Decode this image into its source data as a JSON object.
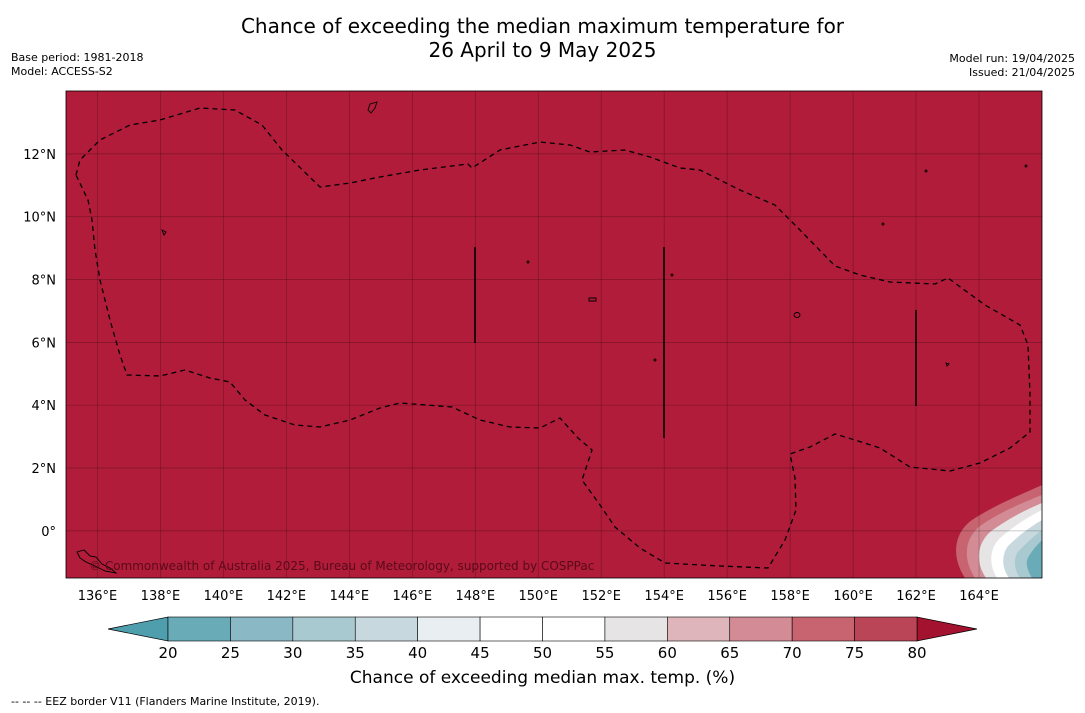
{
  "header": {
    "title_line1": "Chance of exceeding the median maximum temperature for",
    "title_line2": "26 April to 9 May 2025",
    "left_info": [
      "Base period: 1981-2018",
      "Model: ACCESS-S2"
    ],
    "right_info": [
      "Model run: 19/04/2025",
      "Issued: 21/04/2025"
    ]
  },
  "map": {
    "fill_color": "#b01c3a",
    "longitude_labels": [
      "136°E",
      "138°E",
      "140°E",
      "142°E",
      "144°E",
      "146°E",
      "148°E",
      "150°E",
      "152°E",
      "154°E",
      "156°E",
      "158°E",
      "160°E",
      "162°E",
      "164°E"
    ],
    "longitudes": [
      136,
      138,
      140,
      142,
      144,
      146,
      148,
      150,
      152,
      154,
      156,
      158,
      160,
      162,
      164
    ],
    "latitude_labels": [
      "12°N",
      "10°N",
      "8°N",
      "6°N",
      "4°N",
      "2°N",
      "0°"
    ],
    "latitudes": [
      12,
      10,
      8,
      6,
      4,
      2,
      0
    ],
    "lon_range": [
      135.0,
      166.0
    ],
    "lat_range": [
      -1.5,
      14.0
    ],
    "copyright": "© Commonwealth of Australia 2025, Bureau of Meteorology, supported by COSPPac"
  },
  "colorbar": {
    "ticks": [
      "20",
      "25",
      "30",
      "35",
      "40",
      "45",
      "50",
      "55",
      "60",
      "65",
      "70",
      "75",
      "80"
    ],
    "colors": [
      "#6aabb8",
      "#8ab8c4",
      "#a8c9cf",
      "#c7d9de",
      "#e8eef1",
      "#ffffff",
      "#ffffff",
      "#e6e4e5",
      "#deb5bb",
      "#d38c95",
      "#c76470",
      "#b94557"
    ],
    "under_color": "#4f9eae",
    "over_color": "#a3122e",
    "label": "Chance of exceeding median max. temp. (%)"
  },
  "footer": {
    "legend": "--  --  -- EEZ border V11 (Flanders Marine Institute, 2019)."
  }
}
